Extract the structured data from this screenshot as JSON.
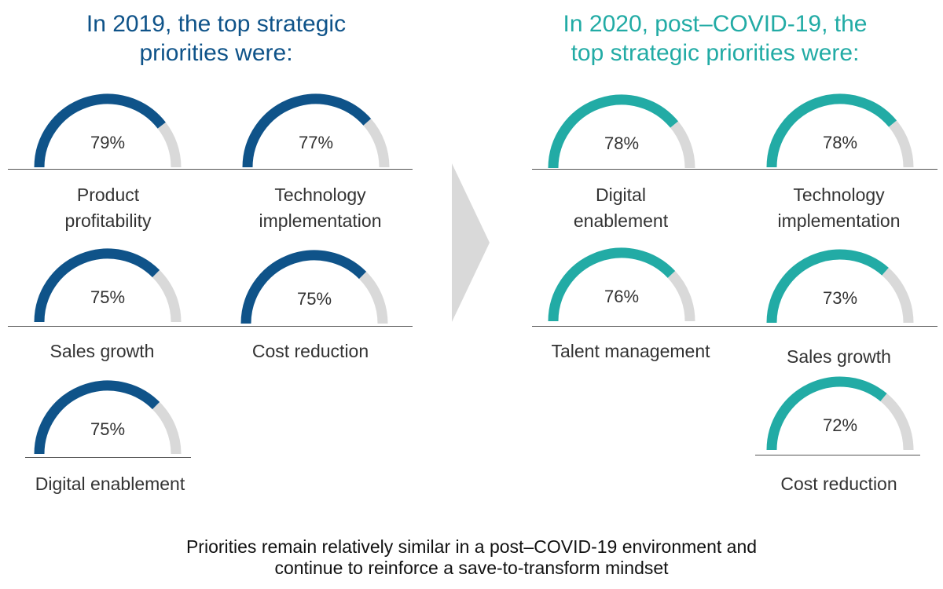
{
  "colors": {
    "dark_blue": "#0f5389",
    "teal": "#22aba5",
    "remainder": "#d9d9d9"
  },
  "titles": {
    "y2019": [
      "In 2019, the top strategic",
      "priorities were:"
    ],
    "y2020": [
      "In 2020, post–COVID-19, the",
      "top strategic priorities were:"
    ]
  },
  "footer": [
    "Priorities remain relatively similar in a post–COVID-19 environment and",
    "continue to reinforce a save-to-transform mindset"
  ],
  "chart_data": [
    {
      "type": "gauge",
      "title": "In 2019, the top strategic priorities were:",
      "unit": "%",
      "items": [
        {
          "label": [
            "Product",
            "profitability"
          ],
          "value": 79,
          "display": "79%"
        },
        {
          "label": [
            "Technology",
            "implementation"
          ],
          "value": 77,
          "display": "77%"
        },
        {
          "label": [
            "Sales growth"
          ],
          "value": 75,
          "display": "75%"
        },
        {
          "label": [
            "Cost reduction"
          ],
          "value": 75,
          "display": "75%"
        },
        {
          "label": [
            "Digital enablement"
          ],
          "value": 75,
          "display": "75%"
        }
      ]
    },
    {
      "type": "gauge",
      "title": "In 2020, post–COVID-19, the top strategic priorities were:",
      "unit": "%",
      "items": [
        {
          "label": [
            "Digital",
            "enablement"
          ],
          "value": 78,
          "display": "78%"
        },
        {
          "label": [
            "Technology",
            "implementation"
          ],
          "value": 78,
          "display": "78%"
        },
        {
          "label": [
            "Talent management"
          ],
          "value": 76,
          "display": "76%"
        },
        {
          "label": [
            "Sales growth"
          ],
          "value": 73,
          "display": "73%"
        },
        {
          "label": [
            "Cost reduction"
          ],
          "value": 72,
          "display": "72%"
        }
      ]
    }
  ]
}
